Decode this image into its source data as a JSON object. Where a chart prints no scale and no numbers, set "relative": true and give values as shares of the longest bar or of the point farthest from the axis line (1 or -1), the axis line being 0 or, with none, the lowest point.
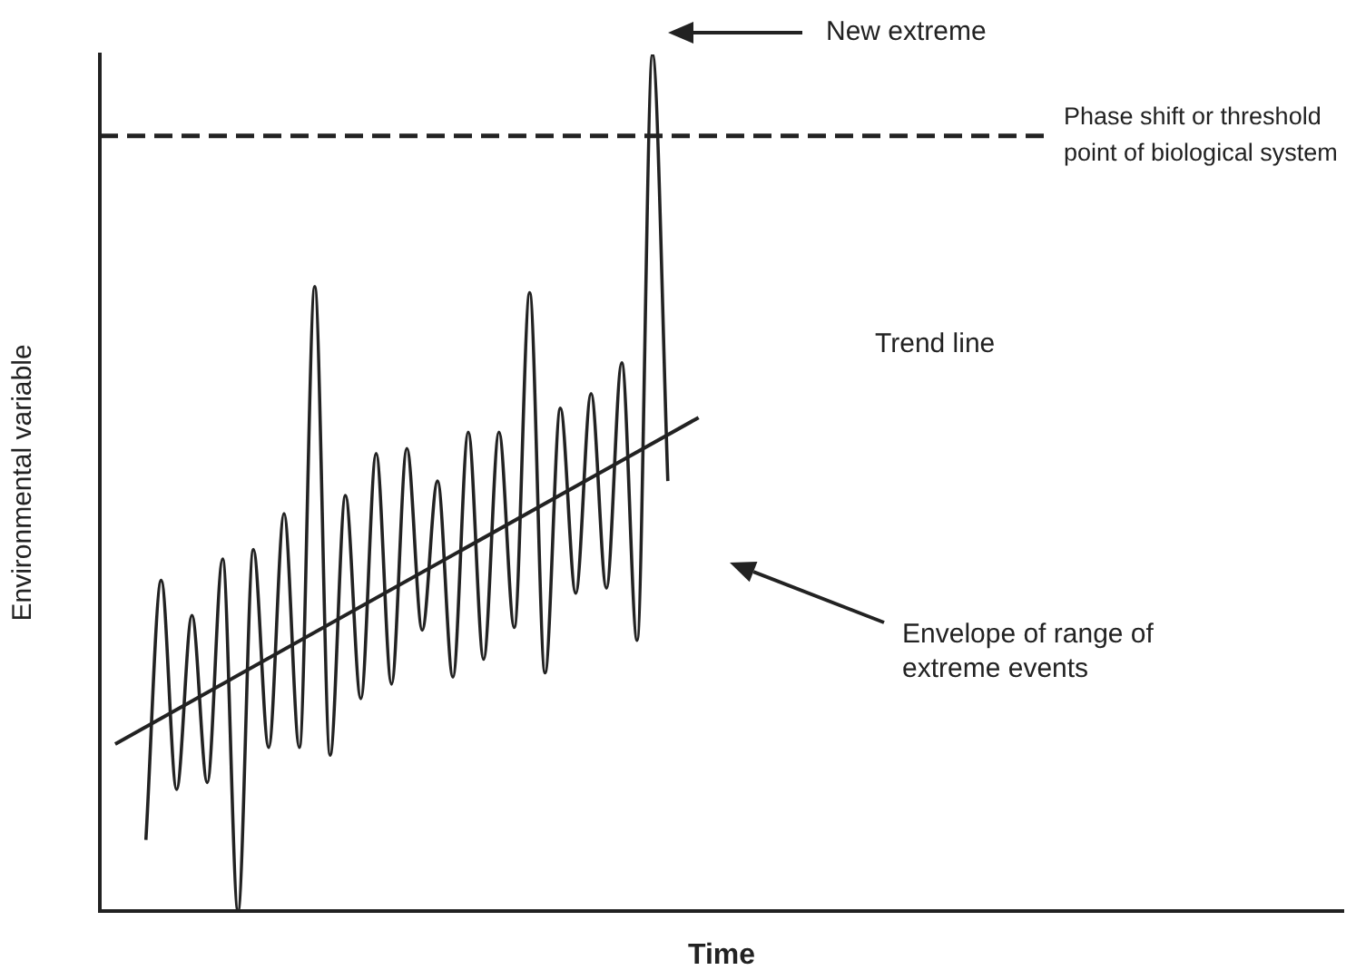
{
  "chart_data": {
    "type": "line",
    "relative": true,
    "xlabel": "Time",
    "ylabel": "Environmental variable",
    "categories": [
      null,
      null,
      null,
      null,
      null,
      null,
      null,
      null,
      null,
      null,
      null,
      null,
      null,
      null,
      null,
      null,
      null,
      null,
      null,
      null,
      null,
      null,
      null,
      null,
      null,
      null,
      null,
      null,
      null,
      null,
      null,
      null,
      null,
      null,
      null,
      null,
      null,
      null,
      null,
      null,
      null,
      null,
      null,
      null,
      null,
      null,
      null,
      null,
      null,
      null,
      null,
      null,
      null,
      null,
      null,
      null,
      null,
      null,
      null,
      null,
      null,
      null,
      null,
      null,
      null,
      null,
      null,
      null,
      null,
      null,
      null,
      null,
      null,
      null,
      null,
      null,
      null,
      null,
      null,
      null,
      null,
      null
    ],
    "series": [
      {
        "color": "#222222",
        "values": [
          null,
          null,
          null,
          0.083,
          0.386,
          0.142,
          0.345,
          0.15,
          0.411,
          0.0,
          0.422,
          0.191,
          0.464,
          0.191,
          0.729,
          0.182,
          0.485,
          0.248,
          0.534,
          0.265,
          0.54,
          0.328,
          0.502,
          0.273,
          0.559,
          0.294,
          0.559,
          0.331,
          0.722,
          0.278,
          0.587,
          0.371,
          0.604,
          0.377,
          0.64,
          0.316,
          1,
          0.502,
          null,
          null,
          null,
          null,
          null,
          null,
          null,
          null,
          null,
          null,
          null,
          null,
          null,
          null,
          null,
          null,
          null,
          null,
          null,
          null,
          null,
          null,
          null,
          null,
          null,
          null,
          null,
          null,
          null,
          null,
          null,
          null,
          null,
          null,
          null,
          null,
          null,
          null,
          null,
          null,
          null,
          null,
          null,
          null
        ]
      },
      {
        "type": "line",
        "color": "#222222",
        "values": [
          null,
          0.195,
          null,
          null,
          null,
          null,
          null,
          null,
          null,
          null,
          null,
          null,
          null,
          null,
          null,
          null,
          null,
          null,
          null,
          null,
          null,
          null,
          null,
          null,
          null,
          null,
          null,
          null,
          null,
          null,
          null,
          null,
          null,
          null,
          null,
          null,
          null,
          null,
          null,
          0.576,
          null,
          null,
          null,
          null,
          null,
          null,
          null,
          null,
          null,
          null,
          null,
          null,
          null,
          null,
          null,
          null,
          null,
          null,
          null,
          null,
          null,
          null,
          null,
          null,
          null,
          null,
          null,
          null,
          null,
          null,
          null,
          null,
          null,
          null,
          null,
          null,
          null,
          null,
          null,
          null,
          null,
          null
        ]
      }
    ],
    "ref_lines": [
      {
        "axis": "y",
        "value": 0.905,
        "label": "Phase shift or threshold point of biological system",
        "line_style": "dashed",
        "color": "#222222"
      }
    ],
    "annotations": [
      "New extreme",
      "Trend line",
      "Envelope of range of extreme events"
    ],
    "grid": false,
    "legend": false,
    "marker": "none",
    "line_style": "solid"
  }
}
